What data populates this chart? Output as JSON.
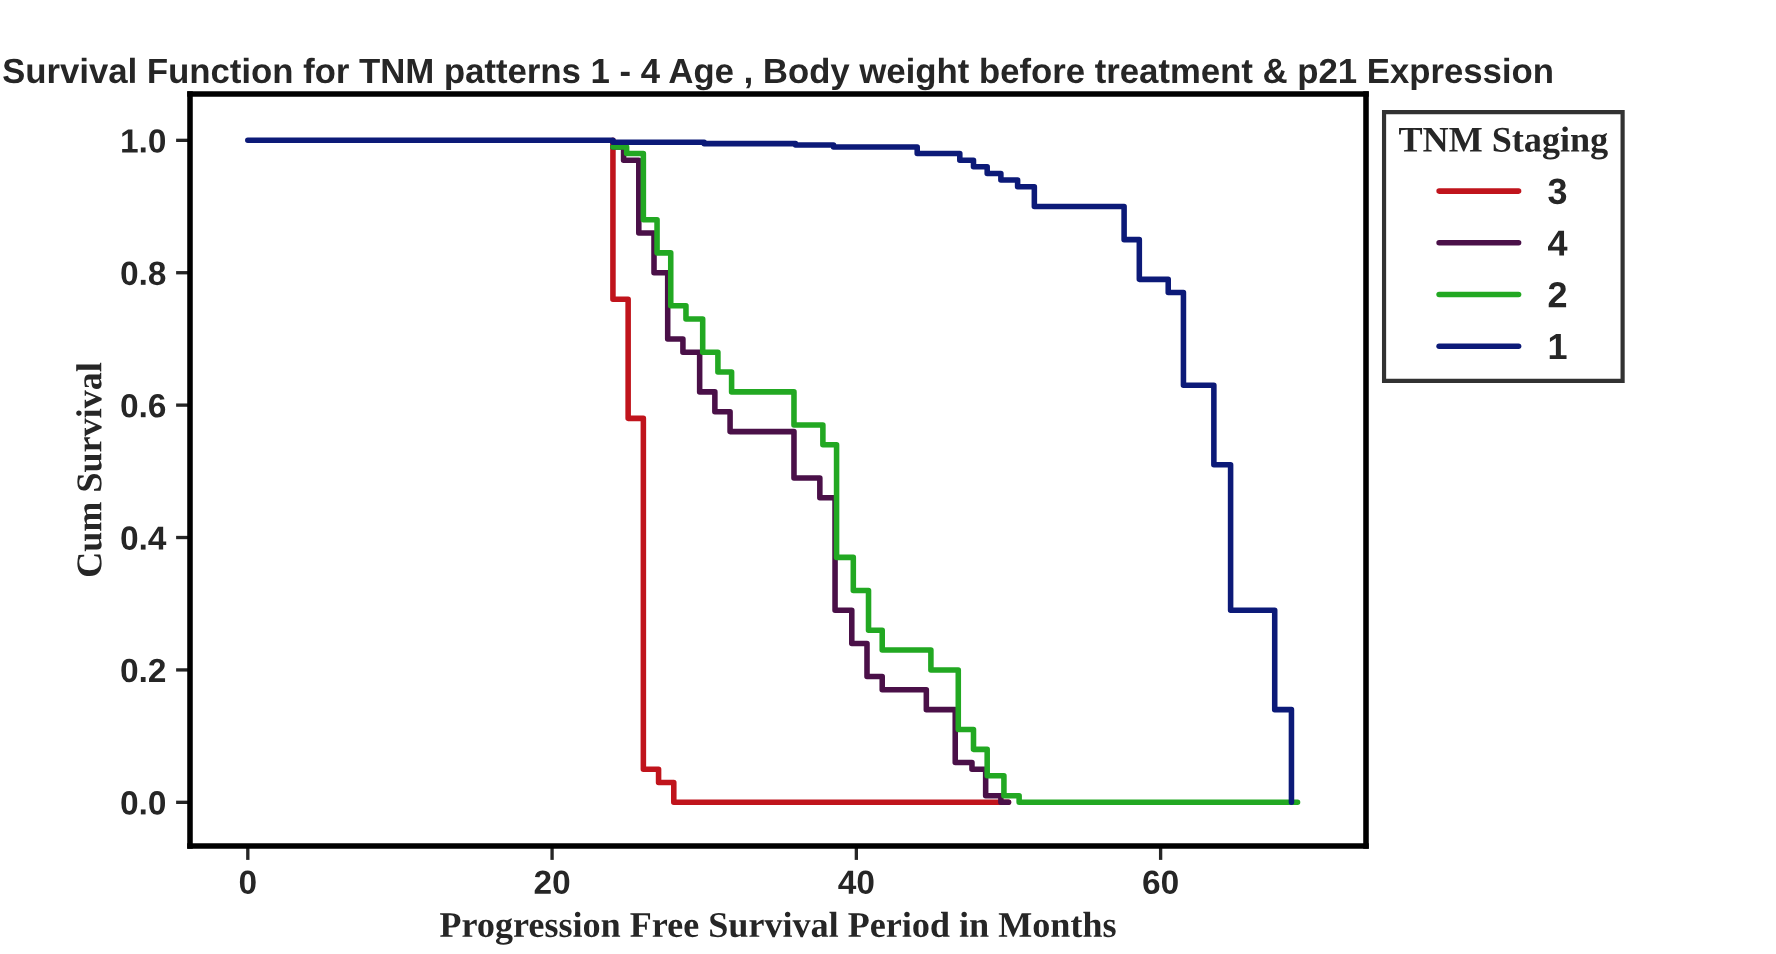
{
  "chart_data": {
    "type": "step",
    "title": "Survival Function for TNM patterns 1 - 4 Age , Body weight before treatment & p21 Expression",
    "xlabel": "Progression Free Survival Period in Months",
    "ylabel": "Cum Survival",
    "legend_title": "TNM Staging",
    "series": [
      {
        "name": "3",
        "color": "#c0141c",
        "x": [
          24,
          24,
          25,
          26,
          27,
          28,
          50
        ],
        "values": [
          1.0,
          0.76,
          0.58,
          0.05,
          0.03,
          0.0,
          0.0
        ]
      },
      {
        "name": "4",
        "color": "#4a1048",
        "x": [
          24,
          24.7,
          25.7,
          26.7,
          27.6,
          28.6,
          29.7,
          30.7,
          31.7,
          35.9,
          37.6,
          38.6,
          39.7,
          40.7,
          41.7,
          44.6,
          46.5,
          47.6,
          48.5,
          49.5,
          50
        ],
        "values": [
          0.99,
          0.97,
          0.86,
          0.8,
          0.7,
          0.68,
          0.62,
          0.59,
          0.56,
          0.49,
          0.46,
          0.29,
          0.24,
          0.19,
          0.17,
          0.14,
          0.06,
          0.05,
          0.01,
          0.0,
          0.0
        ]
      },
      {
        "name": "2",
        "color": "#22a822",
        "x": [
          24,
          24.9,
          26,
          26.9,
          27.8,
          28.8,
          29.9,
          30.9,
          31.8,
          35.9,
          37.8,
          38.7,
          39.8,
          40.8,
          41.7,
          44.9,
          46.7,
          47.7,
          48.6,
          49.7,
          50.7,
          69
        ],
        "values": [
          0.99,
          0.98,
          0.88,
          0.83,
          0.75,
          0.73,
          0.68,
          0.65,
          0.62,
          0.57,
          0.54,
          0.37,
          0.32,
          0.26,
          0.23,
          0.2,
          0.11,
          0.08,
          0.04,
          0.01,
          0.0,
          0.0
        ]
      },
      {
        "name": "1",
        "color": "#0c1a78",
        "x": [
          0,
          24,
          30,
          36,
          38.5,
          44,
          46.8,
          47.7,
          48.6,
          49.5,
          50.6,
          51.7,
          57.6,
          58.6,
          60.5,
          61.5,
          63.5,
          64.6,
          67.5,
          68.6
        ],
        "values": [
          1.0,
          0.997,
          0.995,
          0.993,
          0.99,
          0.98,
          0.97,
          0.96,
          0.95,
          0.94,
          0.93,
          0.9,
          0.85,
          0.79,
          0.77,
          0.63,
          0.51,
          0.29,
          0.14,
          0.0
        ]
      }
    ],
    "xlim": [
      -3.8,
      73.5
    ],
    "ylim": [
      -0.066,
      1.07
    ],
    "xticks": [
      0,
      20,
      40,
      60
    ],
    "yticks": [
      {
        "value": 0,
        "label": "0.0"
      },
      {
        "value": 0.2,
        "label": "0.2"
      },
      {
        "value": 0.4,
        "label": "0.4"
      },
      {
        "value": 0.6,
        "label": "0.6"
      },
      {
        "value": 0.8,
        "label": "0.8"
      },
      {
        "value": 1,
        "label": "1.0"
      }
    ],
    "legend": "top right",
    "grid": false
  }
}
